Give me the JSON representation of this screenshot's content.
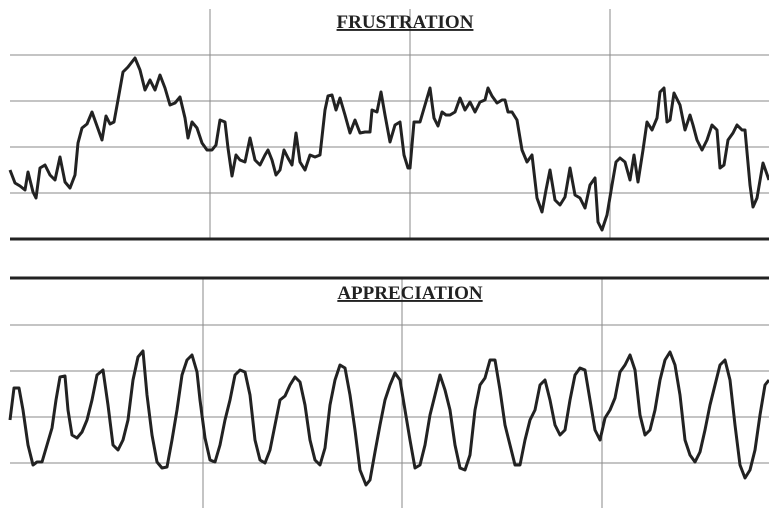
{
  "chart_data": [
    {
      "type": "line",
      "title": "FRUSTRATION",
      "color": "#222222",
      "grid": true,
      "xlim": [
        0,
        759
      ],
      "xticks": [
        200,
        400,
        600
      ],
      "ylim": [
        0,
        230
      ],
      "yticks": [
        46,
        92,
        138,
        184
      ],
      "x": [
        0,
        5,
        10,
        15,
        18,
        23,
        26,
        30,
        35,
        40,
        45,
        50,
        55,
        60,
        65,
        68,
        72,
        77,
        82,
        87,
        92,
        96,
        100,
        104,
        108,
        113,
        118,
        125,
        130,
        135,
        140,
        145,
        150,
        155,
        160,
        165,
        170,
        175,
        178,
        182,
        187,
        192,
        197,
        202,
        206,
        210,
        215,
        218,
        222,
        226,
        230,
        235,
        240,
        245,
        250,
        255,
        258,
        262,
        266,
        270,
        274,
        278,
        282,
        286,
        290,
        295,
        300,
        305,
        310,
        315,
        318,
        322,
        326,
        330,
        335,
        340,
        345,
        350,
        355,
        360,
        362,
        367,
        371,
        375,
        380,
        385,
        390,
        394,
        398,
        400,
        404,
        410,
        415,
        420,
        424,
        428,
        432,
        436,
        440,
        445,
        450,
        455,
        460,
        465,
        470,
        475,
        478,
        482,
        487,
        492,
        495,
        498,
        502,
        507,
        512,
        517,
        522,
        527,
        532,
        536,
        540,
        545,
        550,
        555,
        560,
        565,
        570,
        575,
        580,
        585,
        588,
        592,
        597,
        602,
        606,
        610,
        615,
        620,
        624,
        628,
        633,
        637,
        642,
        647,
        650,
        654,
        657,
        660,
        664,
        670,
        675,
        680,
        683,
        687,
        692,
        697,
        702,
        707,
        710,
        714,
        718,
        723,
        727,
        732,
        735,
        740,
        743,
        747,
        753,
        759
      ],
      "values": [
        69,
        56,
        53,
        49,
        67,
        47,
        41,
        71,
        74,
        64,
        59,
        82,
        57,
        51,
        64,
        96,
        111,
        115,
        127,
        113,
        99,
        123,
        115,
        117,
        139,
        167,
        172,
        181,
        169,
        149,
        159,
        149,
        164,
        151,
        134,
        136,
        142,
        121,
        101,
        117,
        111,
        96,
        89,
        89,
        94,
        119,
        117,
        91,
        63,
        84,
        79,
        77,
        101,
        79,
        74,
        84,
        89,
        79,
        64,
        69,
        89,
        81,
        74,
        106,
        77,
        69,
        84,
        82,
        84,
        129,
        143,
        144,
        129,
        141,
        124,
        106,
        119,
        106,
        107,
        107,
        129,
        127,
        147,
        124,
        97,
        114,
        117,
        84,
        71,
        71,
        117,
        117,
        134,
        151,
        121,
        113,
        127,
        124,
        124,
        127,
        141,
        129,
        137,
        127,
        137,
        139,
        151,
        143,
        136,
        139,
        139,
        127,
        127,
        119,
        89,
        77,
        84,
        41,
        27,
        49,
        69,
        39,
        34,
        42,
        71,
        44,
        41,
        31,
        54,
        61,
        17,
        9,
        24,
        54,
        77,
        81,
        77,
        59,
        84,
        57,
        89,
        117,
        109,
        121,
        147,
        151,
        117,
        119,
        146,
        134,
        109,
        124,
        114,
        99,
        89,
        99,
        114,
        109,
        71,
        74,
        99,
        106,
        114,
        109,
        109,
        54,
        32,
        41,
        76,
        59
      ]
    },
    {
      "type": "line",
      "title": "APPRECIATION",
      "color": "#222222",
      "grid": true,
      "xlim": [
        7,
        766
      ],
      "xticks": [
        200,
        399,
        599
      ],
      "ylim": [
        0,
        230
      ],
      "yticks": [
        46,
        92,
        138,
        184
      ],
      "x": [
        7,
        11,
        16,
        20,
        25,
        30,
        34,
        39,
        44,
        49,
        53,
        57,
        62,
        65,
        69,
        74,
        79,
        84,
        89,
        94,
        100,
        105,
        110,
        115,
        120,
        125,
        130,
        135,
        140,
        144,
        149,
        154,
        159,
        164,
        169,
        174,
        179,
        184,
        189,
        194,
        197,
        202,
        207,
        212,
        217,
        222,
        227,
        232,
        237,
        242,
        247,
        252,
        257,
        262,
        267,
        272,
        277,
        282,
        287,
        292,
        297,
        302,
        307,
        312,
        317,
        322,
        327,
        332,
        337,
        342,
        347,
        352,
        357,
        363,
        367,
        372,
        377,
        382,
        387,
        392,
        397,
        402,
        407,
        412,
        417,
        422,
        427,
        432,
        437,
        442,
        447,
        452,
        457,
        462,
        467,
        472,
        477,
        482,
        487,
        492,
        497,
        502,
        507,
        512,
        517,
        522,
        527,
        532,
        537,
        542,
        547,
        552,
        557,
        562,
        567,
        572,
        577,
        582,
        587,
        592,
        597,
        602,
        607,
        612,
        617,
        622,
        627,
        632,
        637,
        642,
        647,
        652,
        657,
        662,
        667,
        672,
        677,
        682,
        687,
        692,
        697,
        702,
        707,
        712,
        717,
        722,
        727,
        732,
        737,
        742,
        747,
        752,
        757,
        762,
        766
      ],
      "values": [
        89,
        121,
        121,
        99,
        64,
        44,
        47,
        47,
        64,
        81,
        109,
        132,
        133,
        99,
        74,
        71,
        77,
        89,
        109,
        134,
        139,
        104,
        64,
        59,
        69,
        89,
        129,
        152,
        158,
        114,
        74,
        47,
        41,
        42,
        69,
        99,
        134,
        149,
        154,
        137,
        109,
        71,
        49,
        47,
        64,
        89,
        109,
        134,
        139,
        137,
        114,
        69,
        49,
        46,
        59,
        84,
        109,
        113,
        124,
        132,
        127,
        104,
        69,
        49,
        44,
        61,
        104,
        129,
        144,
        141,
        114,
        79,
        39,
        24,
        29,
        57,
        84,
        109,
        124,
        136,
        129,
        99,
        69,
        41,
        44,
        64,
        94,
        114,
        134,
        119,
        99,
        64,
        41,
        39,
        54,
        99,
        124,
        131,
        149,
        149,
        119,
        84,
        64,
        44,
        44,
        69,
        89,
        99,
        124,
        129,
        109,
        84,
        74,
        79,
        109,
        134,
        141,
        139,
        109,
        79,
        69,
        91,
        99,
        111,
        137,
        144,
        154,
        139,
        94,
        74,
        79,
        99,
        129,
        149,
        157,
        144,
        114,
        69,
        54,
        47,
        57,
        79,
        104,
        124,
        144,
        149,
        129,
        84,
        44,
        31,
        39,
        59,
        94,
        124,
        129
      ]
    }
  ]
}
